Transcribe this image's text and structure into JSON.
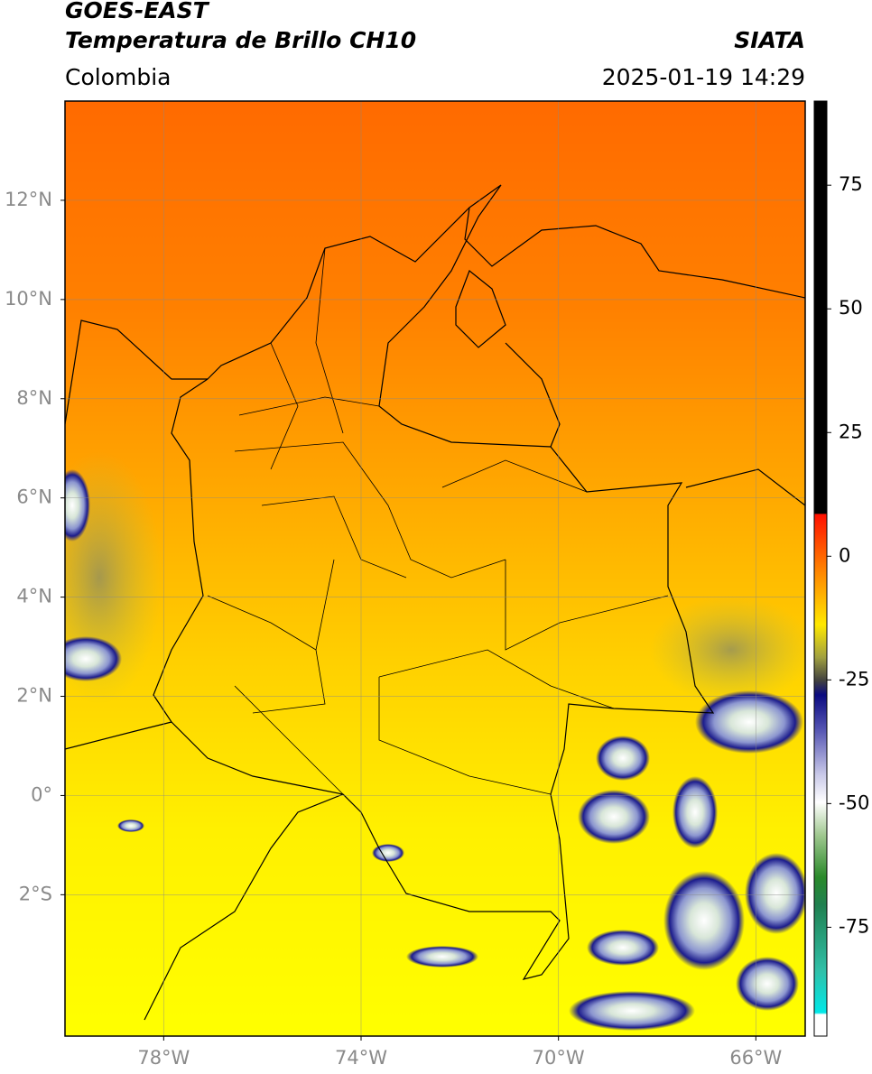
{
  "header": {
    "title_line1": "GOES-EAST",
    "title_line2": "Temperatura de Brillo CH10",
    "source": "SIATA",
    "region": "Colombia",
    "datetime": "2025-01-19 14:29"
  },
  "map": {
    "lonlim": [
      -80,
      -65
    ],
    "latlim": [
      -4.85,
      14
    ],
    "lat_ticks": [
      {
        "value": 12,
        "label": "12°N"
      },
      {
        "value": 10,
        "label": "10°N"
      },
      {
        "value": 8,
        "label": "8°N"
      },
      {
        "value": 6,
        "label": "6°N"
      },
      {
        "value": 4,
        "label": "4°N"
      },
      {
        "value": 2,
        "label": "2°N"
      },
      {
        "value": 0,
        "label": "0°"
      },
      {
        "value": -2,
        "label": "2°S"
      }
    ],
    "lon_ticks": [
      {
        "value": -78,
        "label": "78°W"
      },
      {
        "value": -74,
        "label": "74°W"
      },
      {
        "value": -70,
        "label": "70°W"
      },
      {
        "value": -66,
        "label": "66°W"
      }
    ]
  },
  "colorbar": {
    "limits": [
      -97,
      92
    ],
    "ticks": [
      75,
      50,
      25,
      0,
      -25,
      -50,
      -75
    ]
  }
}
